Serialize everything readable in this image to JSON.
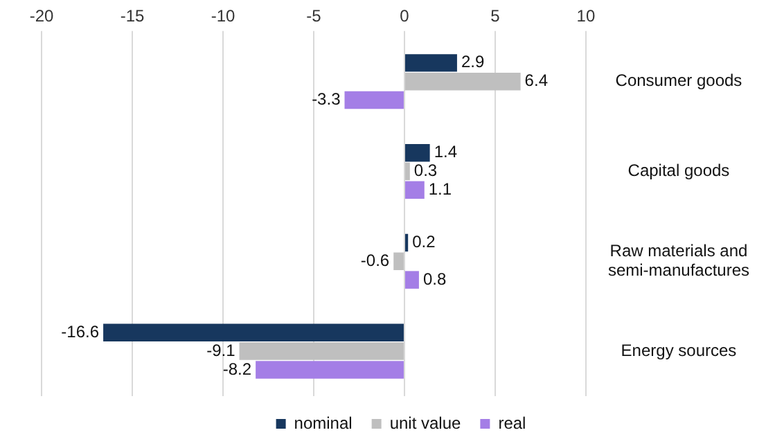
{
  "chart_data": {
    "type": "bar",
    "orientation": "horizontal",
    "categories": [
      "Consumer goods",
      "Capital goods",
      "Raw materials and semi-manufactures",
      "Energy sources"
    ],
    "series": [
      {
        "name": "nominal",
        "color": "#17375e",
        "values": [
          2.9,
          1.4,
          0.2,
          -16.6
        ]
      },
      {
        "name": "unit value",
        "color": "#bfbfbf",
        "values": [
          6.4,
          0.3,
          -0.6,
          -9.1
        ]
      },
      {
        "name": "real",
        "color": "#a47ee6",
        "values": [
          -3.3,
          1.1,
          0.8,
          -8.2
        ]
      }
    ],
    "xlim": [
      -20,
      10
    ],
    "xticks": [
      -20,
      -15,
      -10,
      -5,
      0,
      5,
      10
    ],
    "grid": "x",
    "legend": "bottom",
    "data_labels": true
  }
}
